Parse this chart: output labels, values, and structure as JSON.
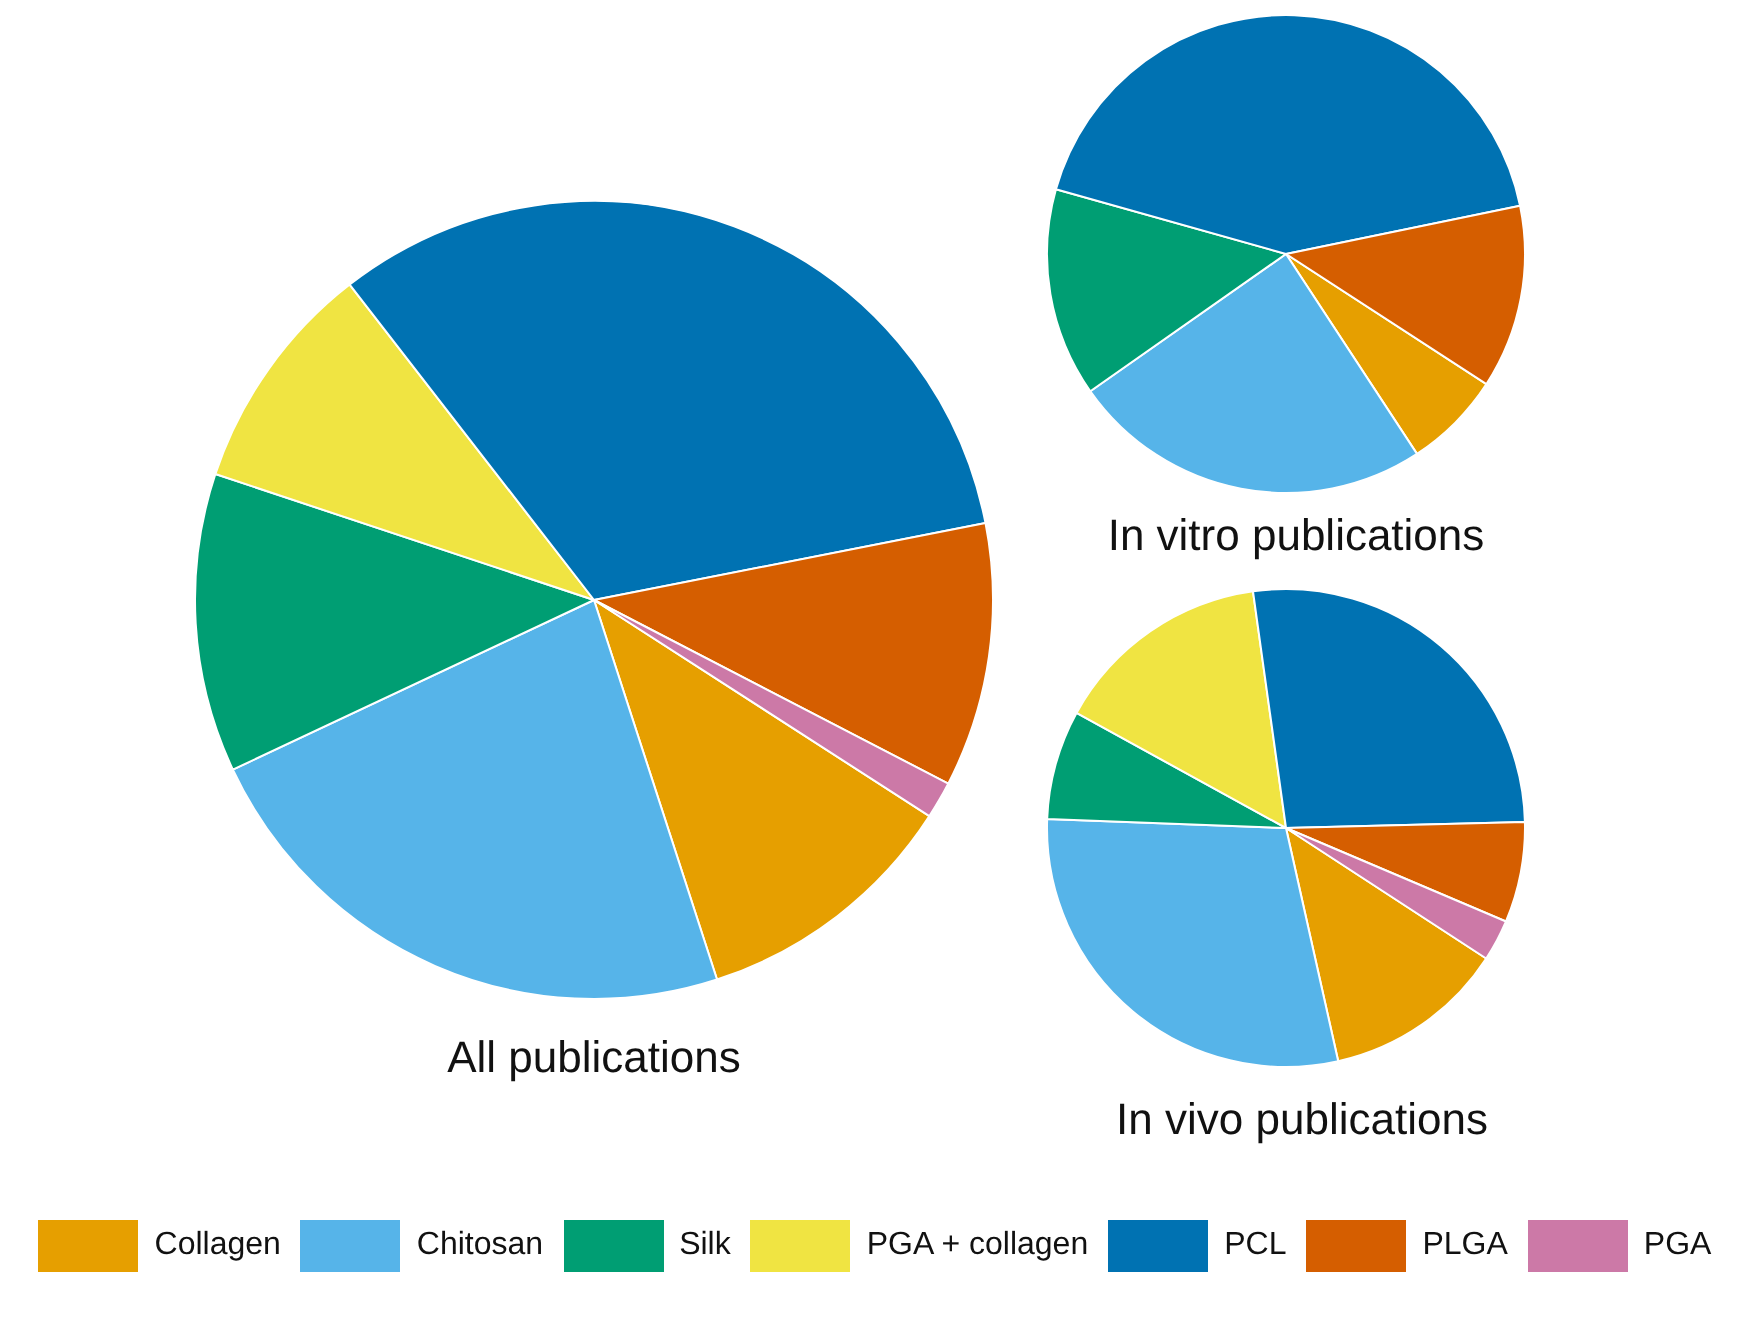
{
  "chart_data": [
    {
      "type": "pie",
      "title": "All publications",
      "categories": [
        "Collagen",
        "Chitosan",
        "Silk",
        "PGA + collagen",
        "PCL",
        "PLGA",
        "PGA"
      ],
      "values": [
        10.9,
        23,
        12.1,
        9.4,
        32.4,
        10.7,
        1.5
      ],
      "colors": [
        "#e69f00",
        "#56b4e9",
        "#009e73",
        "#f0e442",
        "#0072b2",
        "#d55e00",
        "#cc79a7"
      ],
      "legend": "bottom"
    },
    {
      "type": "pie",
      "title": "In vitro publications",
      "categories": [
        null,
        null,
        null,
        null,
        null,
        null,
        null
      ],
      "values": [
        6.6,
        24.5,
        14.1,
        0,
        42.4,
        12.4,
        0
      ],
      "colors": [
        "#e69f00",
        "#56b4e9",
        "#009e73",
        "#f0e442",
        "#0072b2",
        "#d55e00",
        "#cc79a7"
      ]
    },
    {
      "type": "pie",
      "title": "In vivo publications",
      "categories": [
        null,
        null,
        null,
        null,
        null,
        null,
        null
      ],
      "values": [
        12.3,
        29.1,
        7.4,
        14.8,
        26.8,
        6.8,
        2.8
      ],
      "colors": [
        "#e69f00",
        "#56b4e9",
        "#009e73",
        "#f0e442",
        "#0072b2",
        "#d55e00",
        "#cc79a7"
      ]
    }
  ]
}
